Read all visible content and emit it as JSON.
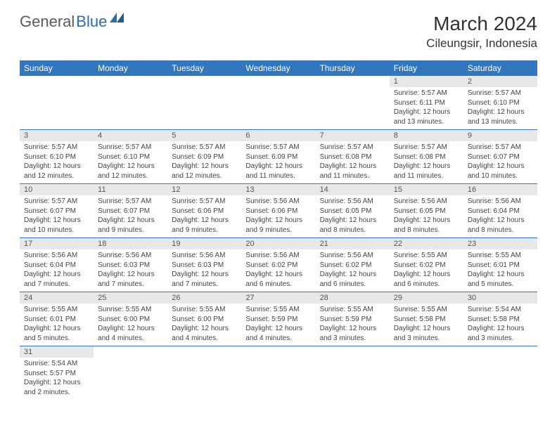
{
  "logo": {
    "part1": "General",
    "part2": "Blue"
  },
  "title": "March 2024",
  "location": "Cileungsir, Indonesia",
  "colors": {
    "header_bg": "#3277bd",
    "header_text": "#ffffff",
    "daynum_bg": "#e8e8e8",
    "daynum_text": "#555555",
    "body_text": "#444444",
    "border": "#3277bd",
    "logo_gray": "#5a5a5a",
    "logo_blue": "#2a6cb0"
  },
  "weekdays": [
    "Sunday",
    "Monday",
    "Tuesday",
    "Wednesday",
    "Thursday",
    "Friday",
    "Saturday"
  ],
  "weeks": [
    [
      null,
      null,
      null,
      null,
      null,
      {
        "n": "1",
        "sunrise": "Sunrise: 5:57 AM",
        "sunset": "Sunset: 6:11 PM",
        "daylight": "Daylight: 12 hours and 13 minutes."
      },
      {
        "n": "2",
        "sunrise": "Sunrise: 5:57 AM",
        "sunset": "Sunset: 6:10 PM",
        "daylight": "Daylight: 12 hours and 13 minutes."
      }
    ],
    [
      {
        "n": "3",
        "sunrise": "Sunrise: 5:57 AM",
        "sunset": "Sunset: 6:10 PM",
        "daylight": "Daylight: 12 hours and 12 minutes."
      },
      {
        "n": "4",
        "sunrise": "Sunrise: 5:57 AM",
        "sunset": "Sunset: 6:10 PM",
        "daylight": "Daylight: 12 hours and 12 minutes."
      },
      {
        "n": "5",
        "sunrise": "Sunrise: 5:57 AM",
        "sunset": "Sunset: 6:09 PM",
        "daylight": "Daylight: 12 hours and 12 minutes."
      },
      {
        "n": "6",
        "sunrise": "Sunrise: 5:57 AM",
        "sunset": "Sunset: 6:09 PM",
        "daylight": "Daylight: 12 hours and 11 minutes."
      },
      {
        "n": "7",
        "sunrise": "Sunrise: 5:57 AM",
        "sunset": "Sunset: 6:08 PM",
        "daylight": "Daylight: 12 hours and 11 minutes."
      },
      {
        "n": "8",
        "sunrise": "Sunrise: 5:57 AM",
        "sunset": "Sunset: 6:08 PM",
        "daylight": "Daylight: 12 hours and 11 minutes."
      },
      {
        "n": "9",
        "sunrise": "Sunrise: 5:57 AM",
        "sunset": "Sunset: 6:07 PM",
        "daylight": "Daylight: 12 hours and 10 minutes."
      }
    ],
    [
      {
        "n": "10",
        "sunrise": "Sunrise: 5:57 AM",
        "sunset": "Sunset: 6:07 PM",
        "daylight": "Daylight: 12 hours and 10 minutes."
      },
      {
        "n": "11",
        "sunrise": "Sunrise: 5:57 AM",
        "sunset": "Sunset: 6:07 PM",
        "daylight": "Daylight: 12 hours and 9 minutes."
      },
      {
        "n": "12",
        "sunrise": "Sunrise: 5:57 AM",
        "sunset": "Sunset: 6:06 PM",
        "daylight": "Daylight: 12 hours and 9 minutes."
      },
      {
        "n": "13",
        "sunrise": "Sunrise: 5:56 AM",
        "sunset": "Sunset: 6:06 PM",
        "daylight": "Daylight: 12 hours and 9 minutes."
      },
      {
        "n": "14",
        "sunrise": "Sunrise: 5:56 AM",
        "sunset": "Sunset: 6:05 PM",
        "daylight": "Daylight: 12 hours and 8 minutes."
      },
      {
        "n": "15",
        "sunrise": "Sunrise: 5:56 AM",
        "sunset": "Sunset: 6:05 PM",
        "daylight": "Daylight: 12 hours and 8 minutes."
      },
      {
        "n": "16",
        "sunrise": "Sunrise: 5:56 AM",
        "sunset": "Sunset: 6:04 PM",
        "daylight": "Daylight: 12 hours and 8 minutes."
      }
    ],
    [
      {
        "n": "17",
        "sunrise": "Sunrise: 5:56 AM",
        "sunset": "Sunset: 6:04 PM",
        "daylight": "Daylight: 12 hours and 7 minutes."
      },
      {
        "n": "18",
        "sunrise": "Sunrise: 5:56 AM",
        "sunset": "Sunset: 6:03 PM",
        "daylight": "Daylight: 12 hours and 7 minutes."
      },
      {
        "n": "19",
        "sunrise": "Sunrise: 5:56 AM",
        "sunset": "Sunset: 6:03 PM",
        "daylight": "Daylight: 12 hours and 7 minutes."
      },
      {
        "n": "20",
        "sunrise": "Sunrise: 5:56 AM",
        "sunset": "Sunset: 6:02 PM",
        "daylight": "Daylight: 12 hours and 6 minutes."
      },
      {
        "n": "21",
        "sunrise": "Sunrise: 5:56 AM",
        "sunset": "Sunset: 6:02 PM",
        "daylight": "Daylight: 12 hours and 6 minutes."
      },
      {
        "n": "22",
        "sunrise": "Sunrise: 5:55 AM",
        "sunset": "Sunset: 6:02 PM",
        "daylight": "Daylight: 12 hours and 6 minutes."
      },
      {
        "n": "23",
        "sunrise": "Sunrise: 5:55 AM",
        "sunset": "Sunset: 6:01 PM",
        "daylight": "Daylight: 12 hours and 5 minutes."
      }
    ],
    [
      {
        "n": "24",
        "sunrise": "Sunrise: 5:55 AM",
        "sunset": "Sunset: 6:01 PM",
        "daylight": "Daylight: 12 hours and 5 minutes."
      },
      {
        "n": "25",
        "sunrise": "Sunrise: 5:55 AM",
        "sunset": "Sunset: 6:00 PM",
        "daylight": "Daylight: 12 hours and 4 minutes."
      },
      {
        "n": "26",
        "sunrise": "Sunrise: 5:55 AM",
        "sunset": "Sunset: 6:00 PM",
        "daylight": "Daylight: 12 hours and 4 minutes."
      },
      {
        "n": "27",
        "sunrise": "Sunrise: 5:55 AM",
        "sunset": "Sunset: 5:59 PM",
        "daylight": "Daylight: 12 hours and 4 minutes."
      },
      {
        "n": "28",
        "sunrise": "Sunrise: 5:55 AM",
        "sunset": "Sunset: 5:59 PM",
        "daylight": "Daylight: 12 hours and 3 minutes."
      },
      {
        "n": "29",
        "sunrise": "Sunrise: 5:55 AM",
        "sunset": "Sunset: 5:58 PM",
        "daylight": "Daylight: 12 hours and 3 minutes."
      },
      {
        "n": "30",
        "sunrise": "Sunrise: 5:54 AM",
        "sunset": "Sunset: 5:58 PM",
        "daylight": "Daylight: 12 hours and 3 minutes."
      }
    ],
    [
      {
        "n": "31",
        "sunrise": "Sunrise: 5:54 AM",
        "sunset": "Sunset: 5:57 PM",
        "daylight": "Daylight: 12 hours and 2 minutes."
      },
      null,
      null,
      null,
      null,
      null,
      null
    ]
  ]
}
